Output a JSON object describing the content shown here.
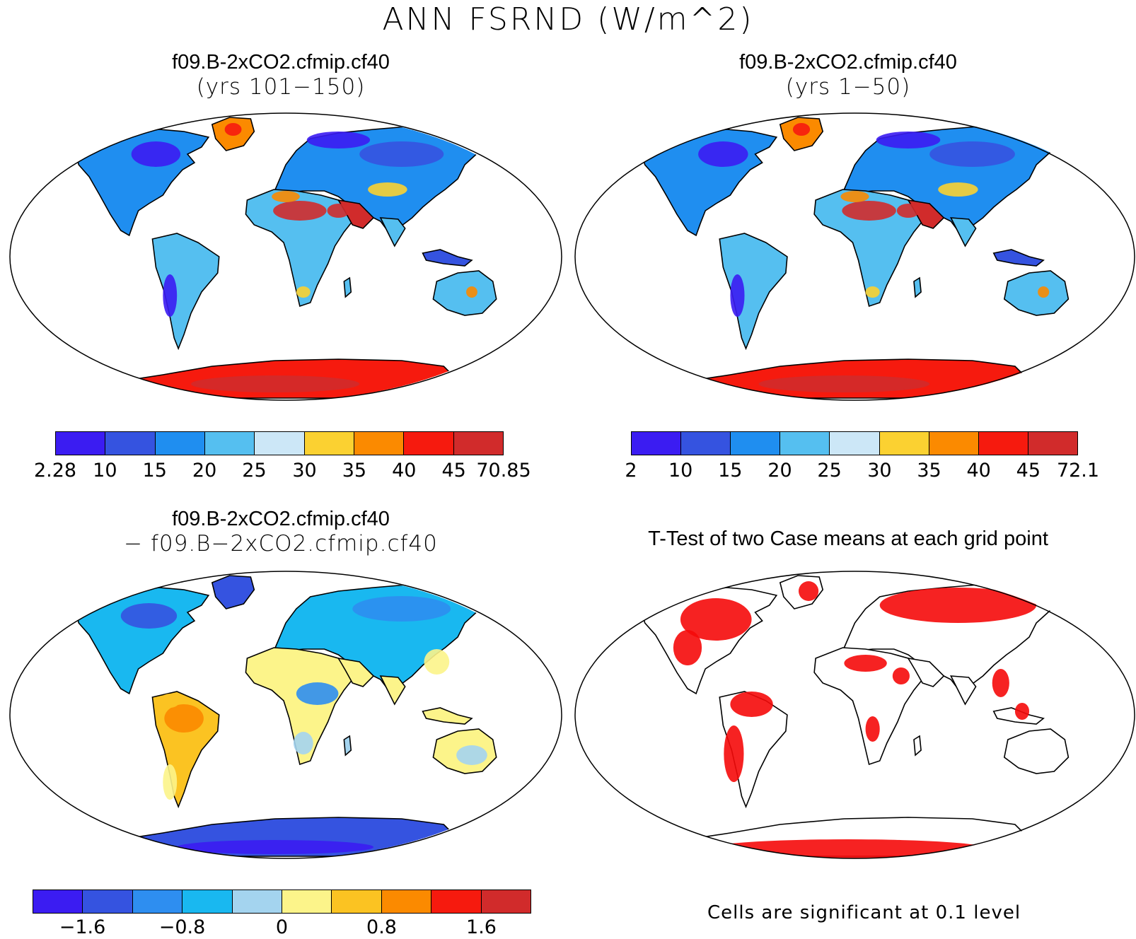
{
  "title": "ANN FSRND (W/m^2)",
  "panels": {
    "top_left": {
      "title_line1": "f09.B-2xCO2.cfmip.cf40",
      "title_line2": "(yrs 101−150)",
      "colorbar": {
        "colors": [
          "#3b1cf2",
          "#3553e0",
          "#1f8ef0",
          "#55bff0",
          "#cce7f7",
          "#fbd131",
          "#fb8a00",
          "#f61a0e",
          "#d12b2b"
        ],
        "labels": [
          "2.28",
          "10",
          "15",
          "20",
          "25",
          "30",
          "35",
          "40",
          "45",
          "70.85"
        ]
      }
    },
    "top_right": {
      "title_line1": "f09.B-2xCO2.cfmip.cf40",
      "title_line2": "(yrs 1−50)",
      "colorbar": {
        "colors": [
          "#3b1cf2",
          "#3553e0",
          "#1f8ef0",
          "#55bff0",
          "#cce7f7",
          "#fbd131",
          "#fb8a00",
          "#f61a0e",
          "#d12b2b"
        ],
        "labels": [
          "2",
          "10",
          "15",
          "20",
          "25",
          "30",
          "35",
          "40",
          "45",
          "72.1"
        ]
      }
    },
    "bottom_left": {
      "title_line1": "f09.B-2xCO2.cfmip.cf40",
      "title_line2": "− f09.B−2xCO2.cfmip.cf40",
      "colorbar": {
        "colors": [
          "#3b1cf2",
          "#3553e0",
          "#2e8ef0",
          "#19b8f0",
          "#a4d4ef",
          "#fcf48a",
          "#fbc322",
          "#fb8a00",
          "#f61a0e",
          "#d12b2b"
        ],
        "labels": [
          "−1.6",
          "−0.8",
          "0",
          "0.8",
          "1.6"
        ]
      }
    },
    "bottom_right": {
      "title": "T-Test of two Case means at each grid point",
      "note": "Cells are significant at 0.1 level",
      "significance_color": "#f50a0a"
    }
  }
}
